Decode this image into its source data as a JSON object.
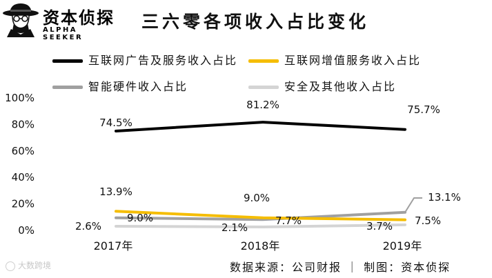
{
  "header": {
    "brand_name": "资本侦探",
    "brand_sub": "ALPHA SEEKER",
    "title": "三六零各项收入占比变化"
  },
  "source": "数据来源：公司财报 ｜ 制图：资本侦探",
  "watermark": "大数跨境",
  "colors": {
    "internet_ads": "#000000",
    "value_added": "#f5bd00",
    "hardware": "#a0a0a0",
    "other": "#d4d4d4"
  },
  "chart_data": {
    "type": "line",
    "categories": [
      "2017年",
      "2018年",
      "2019年"
    ],
    "y_ticks": [
      "0%",
      "20%",
      "40%",
      "60%",
      "80%",
      "100%"
    ],
    "ylim": [
      0,
      100
    ],
    "legend_position": "top",
    "grid": false,
    "series": [
      {
        "name": "互联网广告及服务收入占比",
        "values": [
          74.5,
          81.2,
          75.7
        ],
        "labels": [
          "74.5%",
          "81.2%",
          "75.7%"
        ],
        "color": "#000000"
      },
      {
        "name": "互联网增值服务收入占比",
        "values": [
          13.9,
          9.0,
          7.5
        ],
        "labels": [
          "13.9%",
          "9.0%",
          "7.5%"
        ],
        "color": "#f5bd00"
      },
      {
        "name": "智能硬件收入占比",
        "values": [
          9.0,
          7.7,
          13.1
        ],
        "labels": [
          "9.0%",
          "7.7%",
          "13.1%"
        ],
        "color": "#a0a0a0"
      },
      {
        "name": "安全及其他收入占比",
        "values": [
          2.6,
          2.1,
          3.7
        ],
        "labels": [
          "2.6%",
          "2.1%",
          "3.7%"
        ],
        "color": "#d4d4d4"
      }
    ]
  }
}
